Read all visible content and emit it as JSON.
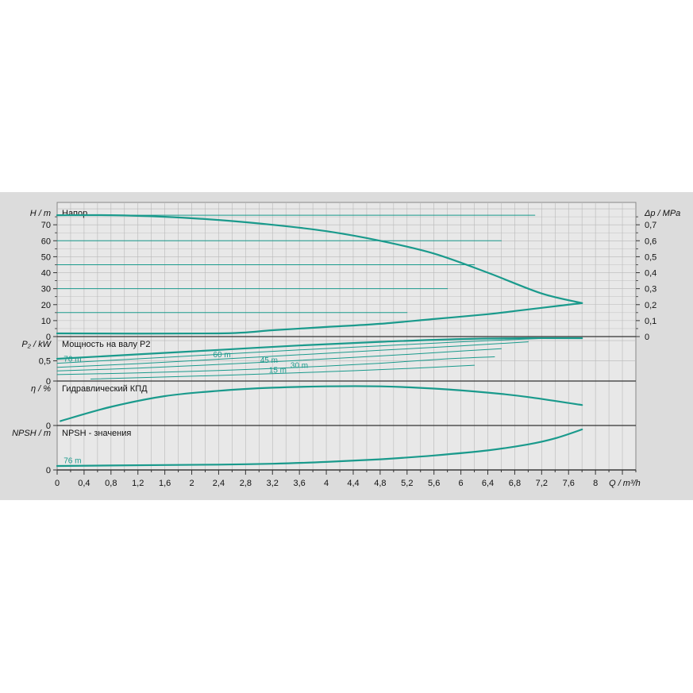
{
  "chart_data": {
    "type": "line",
    "x_axis": {
      "unit_label": "Q / m³/h",
      "range": [
        0,
        8.6
      ],
      "ticks": [
        "0",
        "0,4",
        "0,8",
        "1,2",
        "1,6",
        "2",
        "2,4",
        "2,8",
        "3,2",
        "3,6",
        "4",
        "4,4",
        "4,8",
        "5,2",
        "5,6",
        "6",
        "6,4",
        "6,8",
        "7,2",
        "7,6",
        "8"
      ]
    },
    "panels": [
      {
        "id": "head",
        "title": "Напор",
        "ylabel": "H / m",
        "ylabel_right": "Δp / MPa",
        "ylim": [
          0,
          84
        ],
        "yticks": [
          "0",
          "10",
          "20",
          "30",
          "40",
          "50",
          "60",
          "70"
        ],
        "yticks_right": [
          "0",
          "0,1",
          "0,2",
          "0,3",
          "0,4",
          "0,5",
          "0,6",
          "0,7"
        ],
        "series": [
          {
            "name": "",
            "x": [
              0,
              0.8,
              1.6,
              2.4,
              3.2,
              4.0,
              4.8,
              5.6,
              6.4,
              7.2,
              7.8
            ],
            "y": [
              76,
              76,
              75,
              73,
              70,
              66,
              60,
              52,
              40,
              27,
              21
            ]
          },
          {
            "name": "",
            "x": [
              0,
              2.4,
              3.2,
              4.0,
              4.8,
              5.6,
              6.4,
              6.8,
              7.2,
              7.8
            ],
            "y": [
              2,
              2,
              4,
              6,
              8,
              11,
              14,
              16,
              18,
              21
            ]
          },
          {
            "name": "",
            "x": [
              0,
              7.1
            ],
            "y": [
              76,
              76
            ]
          },
          {
            "name": "",
            "x": [
              0,
              6.6
            ],
            "y": [
              60,
              60
            ]
          },
          {
            "name": "",
            "x": [
              0,
              6.2
            ],
            "y": [
              45,
              45
            ]
          },
          {
            "name": "",
            "x": [
              0,
              5.8
            ],
            "y": [
              30,
              30
            ]
          },
          {
            "name": "",
            "x": [
              0,
              5.2
            ],
            "y": [
              15,
              15
            ]
          }
        ]
      },
      {
        "id": "power",
        "title": "Мощность на валу P2",
        "ylabel": "P₂ / kW",
        "ylim": [
          0,
          1.1
        ],
        "yticks": [
          "0",
          "0,5"
        ],
        "series": [
          {
            "name": "76 m",
            "x": [
              0,
              1.2,
              2.4,
              3.6,
              4.8,
              6.0,
              7.0,
              7.8
            ],
            "y": [
              0.55,
              0.66,
              0.77,
              0.88,
              0.97,
              1.04,
              1.06,
              1.06
            ]
          },
          {
            "name": "60 m",
            "x": [
              0,
              1.2,
              2.4,
              3.6,
              4.8,
              6.0,
              7.3
            ],
            "y": [
              0.44,
              0.55,
              0.66,
              0.77,
              0.87,
              0.97,
              1.06
            ]
          },
          {
            "name": "45 m",
            "x": [
              0,
              1.2,
              2.4,
              3.6,
              4.8,
              6.0,
              7.0
            ],
            "y": [
              0.34,
              0.43,
              0.54,
              0.65,
              0.76,
              0.87,
              0.97
            ]
          },
          {
            "name": "30 m",
            "x": [
              0,
              1.2,
              2.4,
              3.6,
              4.8,
              6.0,
              6.6
            ],
            "y": [
              0.25,
              0.32,
              0.41,
              0.51,
              0.62,
              0.74,
              0.8
            ]
          },
          {
            "name": "15 m",
            "x": [
              0,
              1.2,
              2.4,
              3.6,
              4.8,
              5.8,
              6.5
            ],
            "y": [
              0.16,
              0.2,
              0.26,
              0.34,
              0.44,
              0.55,
              0.6
            ]
          },
          {
            "name": "",
            "x": [
              0.5,
              1.6,
              2.8,
              4.0,
              5.2,
              6.2
            ],
            "y": [
              0.05,
              0.1,
              0.16,
              0.23,
              0.31,
              0.39
            ]
          }
        ],
        "annotations": [
          {
            "text": "76 m",
            "x": 0.05,
            "y": 0.56
          },
          {
            "text": "60 m",
            "x": 2.27,
            "y": 0.67
          },
          {
            "text": "45 m",
            "x": 2.97,
            "y": 0.53
          },
          {
            "text": "30 m",
            "x": 3.42,
            "y": 0.4
          },
          {
            "text": "15 m",
            "x": 3.1,
            "y": 0.28
          }
        ]
      },
      {
        "id": "efficiency",
        "title": "Гидравлический КПД",
        "ylabel": "η / %",
        "ylim": [
          0,
          100
        ],
        "yticks": [
          "0"
        ],
        "series": [
          {
            "name": "",
            "x": [
              0.05,
              0.8,
              1.6,
              2.4,
              3.2,
              4.0,
              4.8,
              5.6,
              6.4,
              7.0,
              7.8
            ],
            "y": [
              10,
              42,
              66,
              78,
              85,
              88,
              88,
              83,
              74,
              64,
              46
            ]
          }
        ]
      },
      {
        "id": "npsh",
        "title": "NPSH - значения",
        "ylabel": "NPSH / m",
        "ylim": [
          0,
          2.0
        ],
        "yticks": [
          "0"
        ],
        "series": [
          {
            "name": "76 m",
            "x": [
              0,
              0.8,
              1.6,
              2.4,
              3.2,
              4.0,
              4.8,
              5.6,
              6.4,
              7.0,
              7.4,
              7.8
            ],
            "y": [
              0.18,
              0.2,
              0.22,
              0.24,
              0.28,
              0.36,
              0.48,
              0.65,
              0.88,
              1.15,
              1.42,
              1.82
            ]
          }
        ],
        "annotations": [
          {
            "text": "76 m",
            "x": 0.05,
            "y": 0.45
          }
        ]
      }
    ],
    "grid": true,
    "colors": {
      "curve": "#1a9a8c",
      "background": "#e8e8e8",
      "frame": "#dcdcdc",
      "grid": "#b8b8b8"
    }
  }
}
